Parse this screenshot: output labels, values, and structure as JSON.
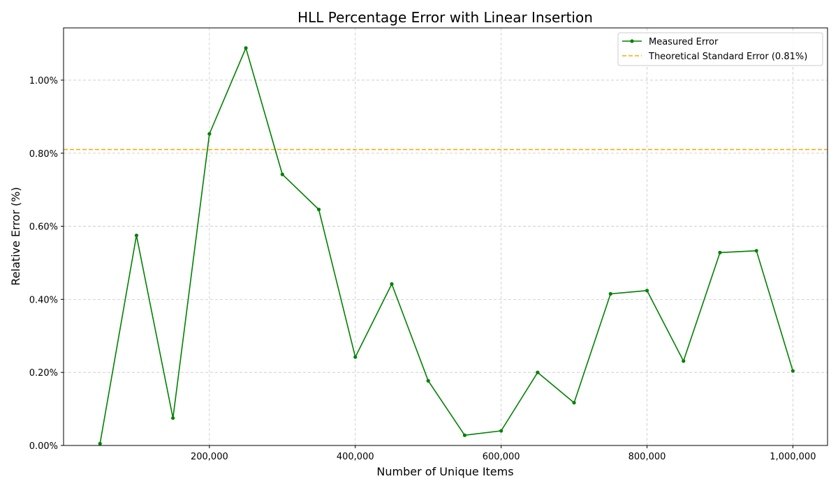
{
  "chart_data": {
    "type": "line",
    "title": "HLL Percentage Error with Linear Insertion",
    "xlabel": "Number of Unique Items",
    "ylabel": "Relative Error (%)",
    "xlim": [
      0,
      1047500
    ],
    "ylim": [
      0,
      1.143
    ],
    "x_ticks": [
      200000,
      400000,
      600000,
      800000,
      1000000
    ],
    "x_tick_labels": [
      "200,000",
      "400,000",
      "600,000",
      "800,000",
      "1,000,000"
    ],
    "y_ticks": [
      0,
      0.2,
      0.4,
      0.6,
      0.8,
      1.0
    ],
    "y_tick_labels": [
      "0.00%",
      "0.20%",
      "0.40%",
      "0.60%",
      "0.80%",
      "1.00%"
    ],
    "grid": true,
    "legend_position": "top-right",
    "series": [
      {
        "name": "Measured Error",
        "color": "#008000",
        "style": "solid",
        "marker": "dot",
        "x": [
          50000,
          100000,
          150000,
          200000,
          250000,
          300000,
          350000,
          400000,
          450000,
          500000,
          550000,
          600000,
          650000,
          700000,
          750000,
          800000,
          850000,
          900000,
          950000,
          1000000
        ],
        "y": [
          0.005,
          0.575,
          0.075,
          0.853,
          1.088,
          0.742,
          0.646,
          0.242,
          0.442,
          0.177,
          0.028,
          0.04,
          0.2,
          0.117,
          0.415,
          0.424,
          0.231,
          0.528,
          0.533,
          0.204
        ]
      }
    ],
    "reference_lines": [
      {
        "name": "Theoretical Standard Error (0.81%)",
        "y": 0.81,
        "color": "#FFA500",
        "style": "dashed"
      }
    ]
  }
}
